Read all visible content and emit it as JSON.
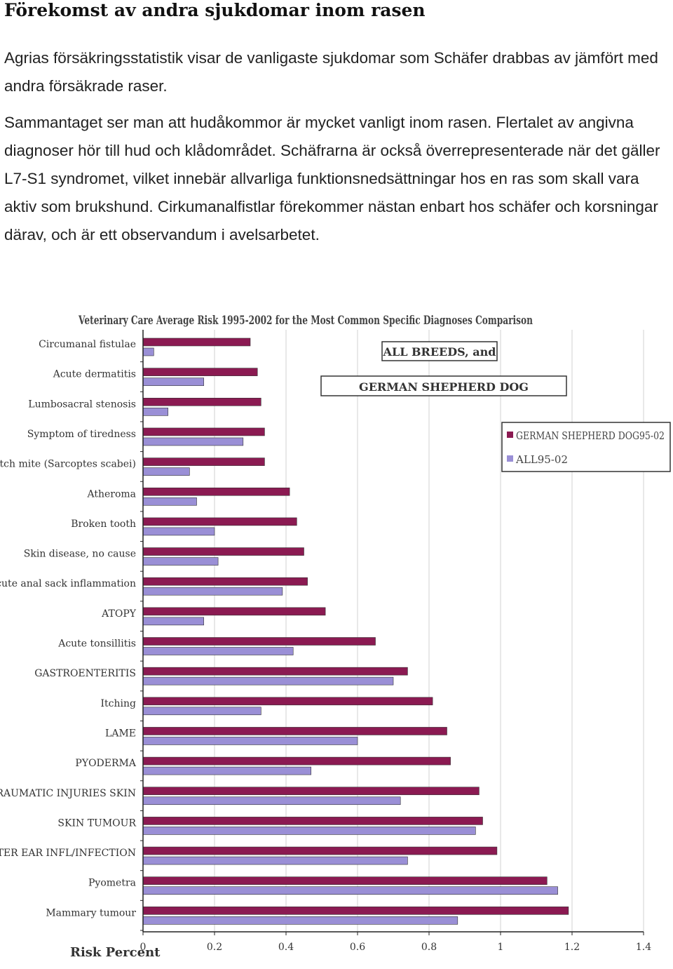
{
  "document": {
    "heading": "Förekomst av andra sjukdomar inom rasen",
    "paragraph1": "Agrias försäkringsstatistik visar de vanligaste sjukdomar som Schäfer drabbas av jämfört med andra försäkrade raser.",
    "paragraph2": "Sammantaget ser man att hudåkommor är mycket vanligt inom rasen. Flertalet av angivna diagnoser hör till hud och klådområdet. Schäfrarna är också överrepresenterade när det gäller L7-S1 syndromet, vilket innebär allvarliga funktionsnedsättningar hos en ras som skall vara aktiv som brukshund. Cirkumanalfistlar förekommer nästan enbart hos schäfer och korsningar därav, och är ett observandum i avelsarbetet."
  },
  "chart_data": {
    "type": "bar",
    "orientation": "horizontal",
    "title": "Veterinary Care Average Risk 1995-2002 for the Most Common Specific Diagnoses Comparison",
    "annotation_line1": "ALL BREEDS, and",
    "annotation_line2": "GERMAN SHEPHERD DOG",
    "xlabel": "Risk Percent",
    "xlim": [
      0,
      1.4
    ],
    "xticks": [
      "0",
      "0.2",
      "0.4",
      "0.6",
      "0.8",
      "1",
      "1.2",
      "1.4"
    ],
    "grid": true,
    "legend_position": "top-right",
    "colors": {
      "gsd": "#8b1a52",
      "all": "#9a8fd6"
    },
    "categories": [
      "Circumanal fistulae",
      "Acute dermatitis",
      "Lumbosacral stenosis",
      "Symptom of tiredness",
      "Itch mite (Sarcoptes scabei)",
      "Atheroma",
      "Broken tooth",
      "Skin disease, no cause",
      "Acute anal sack inflammation",
      "ATOPY",
      "Acute tonsillitis",
      "GASTROENTERITIS",
      "Itching",
      "LAME",
      "PYODERMA",
      "TRAUMATIC INJURIES SKIN",
      "SKIN TUMOUR",
      "OUTER EAR INFL/INFECTION",
      "Pyometra",
      "Mammary tumour"
    ],
    "series": [
      {
        "name": "GERMAN SHEPHERD DOG95-02",
        "values": [
          0.3,
          0.32,
          0.33,
          0.34,
          0.34,
          0.41,
          0.43,
          0.45,
          0.46,
          0.51,
          0.65,
          0.74,
          0.81,
          0.85,
          0.86,
          0.94,
          0.95,
          0.99,
          1.13,
          1.19
        ]
      },
      {
        "name": "ALL95-02",
        "values": [
          0.03,
          0.17,
          0.07,
          0.28,
          0.13,
          0.15,
          0.2,
          0.21,
          0.39,
          0.17,
          0.42,
          0.7,
          0.33,
          0.6,
          0.47,
          0.72,
          0.93,
          0.74,
          1.16,
          0.88
        ]
      }
    ]
  }
}
